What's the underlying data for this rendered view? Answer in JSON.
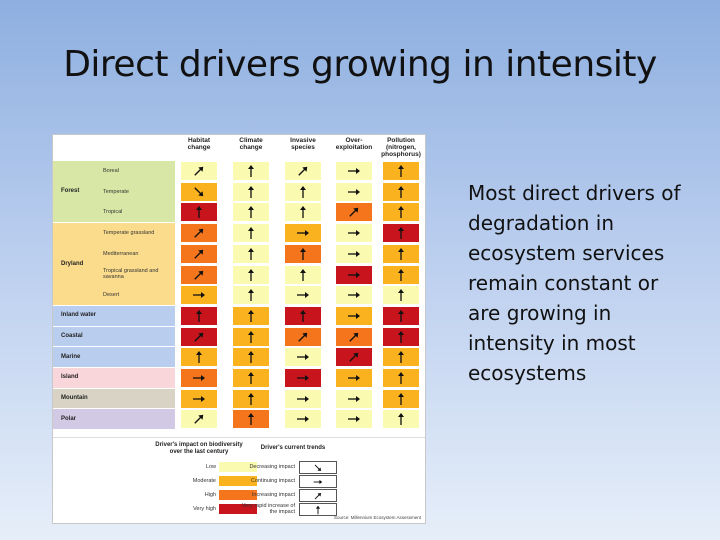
{
  "slide": {
    "title": "Direct drivers growing in intensity",
    "body_lines": [
      "Most direct drivers of",
      "degradation in",
      "ecosystem services",
      "remain constant or",
      "are growing in",
      "intensity in most",
      "ecosystems"
    ]
  },
  "colors": {
    "low": "#fafab0",
    "moderate": "#fbb21f",
    "high": "#f5751d",
    "very_high": "#c7141d"
  },
  "table": {
    "columns": [
      {
        "label": "Habitat change"
      },
      {
        "label": "Climate change"
      },
      {
        "label": "Invasive species"
      },
      {
        "label": "Over-exploitation"
      },
      {
        "label": "Pollution (nitrogen, phosphorus)"
      }
    ],
    "groups": [
      {
        "name": "Forest",
        "band": "#d8e7a5",
        "rows": [
          "Boreal",
          "Temperate",
          "Tropical"
        ]
      },
      {
        "name": "Dryland",
        "band": "#fbdc8c",
        "rows": [
          "Temperate grassland",
          "Mediterranean",
          "Tropical grassland and savanna",
          "Desert"
        ]
      },
      {
        "name": "Inland water",
        "band": "#b9cdee",
        "rows": [
          ""
        ]
      },
      {
        "name": "Coastal",
        "band": "#b9cdee",
        "rows": [
          ""
        ]
      },
      {
        "name": "Marine",
        "band": "#b9cdee",
        "rows": [
          ""
        ]
      },
      {
        "name": "Island",
        "band": "#f8d6da",
        "rows": [
          ""
        ]
      },
      {
        "name": "Mountain",
        "band": "#d8d3c4",
        "rows": [
          ""
        ]
      },
      {
        "name": "Polar",
        "band": "#d2c9e4",
        "rows": [
          ""
        ]
      }
    ],
    "cells": [
      [
        {
          "impact": "low",
          "trend": "increasing"
        },
        {
          "impact": "low",
          "trend": "very_rapid"
        },
        {
          "impact": "low",
          "trend": "increasing"
        },
        {
          "impact": "low",
          "trend": "continuing"
        },
        {
          "impact": "moderate",
          "trend": "very_rapid"
        }
      ],
      [
        {
          "impact": "moderate",
          "trend": "decreasing"
        },
        {
          "impact": "low",
          "trend": "very_rapid"
        },
        {
          "impact": "low",
          "trend": "very_rapid"
        },
        {
          "impact": "low",
          "trend": "continuing"
        },
        {
          "impact": "moderate",
          "trend": "very_rapid"
        }
      ],
      [
        {
          "impact": "very_high",
          "trend": "very_rapid"
        },
        {
          "impact": "low",
          "trend": "very_rapid"
        },
        {
          "impact": "low",
          "trend": "very_rapid"
        },
        {
          "impact": "high",
          "trend": "increasing"
        },
        {
          "impact": "moderate",
          "trend": "very_rapid"
        }
      ],
      [
        {
          "impact": "high",
          "trend": "increasing"
        },
        {
          "impact": "low",
          "trend": "very_rapid"
        },
        {
          "impact": "moderate",
          "trend": "continuing"
        },
        {
          "impact": "low",
          "trend": "continuing"
        },
        {
          "impact": "very_high",
          "trend": "very_rapid"
        }
      ],
      [
        {
          "impact": "high",
          "trend": "increasing"
        },
        {
          "impact": "low",
          "trend": "very_rapid"
        },
        {
          "impact": "high",
          "trend": "very_rapid"
        },
        {
          "impact": "low",
          "trend": "continuing"
        },
        {
          "impact": "moderate",
          "trend": "very_rapid"
        }
      ],
      [
        {
          "impact": "high",
          "trend": "increasing"
        },
        {
          "impact": "low",
          "trend": "very_rapid"
        },
        {
          "impact": "low",
          "trend": "very_rapid"
        },
        {
          "impact": "very_high",
          "trend": "continuing"
        },
        {
          "impact": "moderate",
          "trend": "very_rapid"
        }
      ],
      [
        {
          "impact": "moderate",
          "trend": "continuing"
        },
        {
          "impact": "low",
          "trend": "very_rapid"
        },
        {
          "impact": "low",
          "trend": "continuing"
        },
        {
          "impact": "low",
          "trend": "continuing"
        },
        {
          "impact": "low",
          "trend": "very_rapid"
        }
      ],
      [
        {
          "impact": "very_high",
          "trend": "very_rapid"
        },
        {
          "impact": "moderate",
          "trend": "very_rapid"
        },
        {
          "impact": "very_high",
          "trend": "very_rapid"
        },
        {
          "impact": "moderate",
          "trend": "continuing"
        },
        {
          "impact": "very_high",
          "trend": "very_rapid"
        }
      ],
      [
        {
          "impact": "very_high",
          "trend": "increasing"
        },
        {
          "impact": "moderate",
          "trend": "very_rapid"
        },
        {
          "impact": "high",
          "trend": "increasing"
        },
        {
          "impact": "high",
          "trend": "increasing"
        },
        {
          "impact": "very_high",
          "trend": "very_rapid"
        }
      ],
      [
        {
          "impact": "moderate",
          "trend": "very_rapid"
        },
        {
          "impact": "moderate",
          "trend": "very_rapid"
        },
        {
          "impact": "low",
          "trend": "continuing"
        },
        {
          "impact": "very_high",
          "trend": "increasing"
        },
        {
          "impact": "moderate",
          "trend": "very_rapid"
        }
      ],
      [
        {
          "impact": "high",
          "trend": "continuing"
        },
        {
          "impact": "moderate",
          "trend": "very_rapid"
        },
        {
          "impact": "very_high",
          "trend": "continuing"
        },
        {
          "impact": "moderate",
          "trend": "continuing"
        },
        {
          "impact": "moderate",
          "trend": "very_rapid"
        }
      ],
      [
        {
          "impact": "moderate",
          "trend": "continuing"
        },
        {
          "impact": "moderate",
          "trend": "very_rapid"
        },
        {
          "impact": "low",
          "trend": "continuing"
        },
        {
          "impact": "low",
          "trend": "continuing"
        },
        {
          "impact": "moderate",
          "trend": "very_rapid"
        }
      ],
      [
        {
          "impact": "low",
          "trend": "increasing"
        },
        {
          "impact": "high",
          "trend": "very_rapid"
        },
        {
          "impact": "low",
          "trend": "continuing"
        },
        {
          "impact": "low",
          "trend": "continuing"
        },
        {
          "impact": "low",
          "trend": "very_rapid"
        }
      ]
    ]
  },
  "legend": {
    "impact_title": "Driver's impact on biodiversity over the last century",
    "impact_items": [
      {
        "label": "Low",
        "key": "low"
      },
      {
        "label": "Moderate",
        "key": "moderate"
      },
      {
        "label": "High",
        "key": "high"
      },
      {
        "label": "Very high",
        "key": "very_high"
      }
    ],
    "trend_title": "Driver's current trends",
    "trend_items": [
      {
        "label": "Decreasing impact",
        "key": "decreasing"
      },
      {
        "label": "Continuing impact",
        "key": "continuing"
      },
      {
        "label": "Increasing impact",
        "key": "increasing"
      },
      {
        "label": "Very rapid increase of the impact",
        "key": "very_rapid"
      }
    ],
    "source": "Source: Millennium Ecosystem Assessment"
  }
}
